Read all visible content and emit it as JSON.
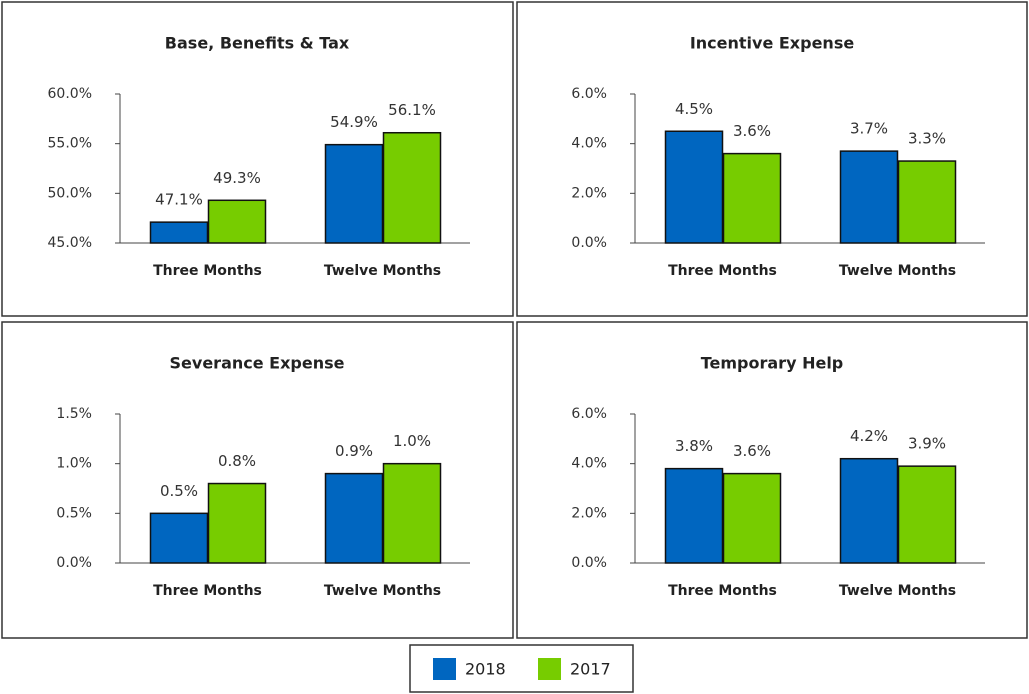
{
  "chart_data": [
    {
      "type": "bar",
      "title": "Base, Benefits & Tax",
      "categories": [
        "Three Months",
        "Twelve Months"
      ],
      "series": [
        {
          "name": "2018",
          "color": "#0066c0",
          "values": [
            47.1,
            54.9
          ],
          "value_labels": [
            "47.1%",
            "54.9%"
          ]
        },
        {
          "name": "2017",
          "color": "#77cc00",
          "values": [
            49.3,
            56.1
          ],
          "value_labels": [
            "49.3%",
            "56.1%"
          ]
        }
      ],
      "ylim": [
        45,
        60
      ],
      "yticks": [
        {
          "value": 45,
          "label": "45.0%"
        },
        {
          "value": 50,
          "label": "50.0%"
        },
        {
          "value": 55,
          "label": "55.0%"
        },
        {
          "value": 60,
          "label": "60.0%"
        }
      ]
    },
    {
      "type": "bar",
      "title": "Incentive Expense",
      "categories": [
        "Three Months",
        "Twelve Months"
      ],
      "series": [
        {
          "name": "2018",
          "color": "#0066c0",
          "values": [
            4.5,
            3.7
          ],
          "value_labels": [
            "4.5%",
            "3.7%"
          ]
        },
        {
          "name": "2017",
          "color": "#77cc00",
          "values": [
            3.6,
            3.3
          ],
          "value_labels": [
            "3.6%",
            "3.3%"
          ]
        }
      ],
      "ylim": [
        0,
        6
      ],
      "yticks": [
        {
          "value": 0,
          "label": "0.0%"
        },
        {
          "value": 2,
          "label": "2.0%"
        },
        {
          "value": 4,
          "label": "4.0%"
        },
        {
          "value": 6,
          "label": "6.0%"
        }
      ]
    },
    {
      "type": "bar",
      "title": "Severance Expense",
      "categories": [
        "Three Months",
        "Twelve Months"
      ],
      "series": [
        {
          "name": "2018",
          "color": "#0066c0",
          "values": [
            0.5,
            0.9
          ],
          "value_labels": [
            "0.5%",
            "0.9%"
          ]
        },
        {
          "name": "2017",
          "color": "#77cc00",
          "values": [
            0.8,
            1.0
          ],
          "value_labels": [
            "0.8%",
            "1.0%"
          ]
        }
      ],
      "ylim": [
        0,
        1.5
      ],
      "yticks": [
        {
          "value": 0,
          "label": "0.0%"
        },
        {
          "value": 0.5,
          "label": "0.5%"
        },
        {
          "value": 1,
          "label": "1.0%"
        },
        {
          "value": 1.5,
          "label": "1.5%"
        }
      ]
    },
    {
      "type": "bar",
      "title": "Temporary Help",
      "categories": [
        "Three Months",
        "Twelve Months"
      ],
      "series": [
        {
          "name": "2018",
          "color": "#0066c0",
          "values": [
            3.8,
            4.2
          ],
          "value_labels": [
            "3.8%",
            "4.2%"
          ]
        },
        {
          "name": "2017",
          "color": "#77cc00",
          "values": [
            3.6,
            3.9
          ],
          "value_labels": [
            "3.6%",
            "3.9%"
          ]
        }
      ],
      "ylim": [
        0,
        6
      ],
      "yticks": [
        {
          "value": 0,
          "label": "0.0%"
        },
        {
          "value": 2,
          "label": "2.0%"
        },
        {
          "value": 4,
          "label": "4.0%"
        },
        {
          "value": 6,
          "label": "6.0%"
        }
      ]
    }
  ]
}
